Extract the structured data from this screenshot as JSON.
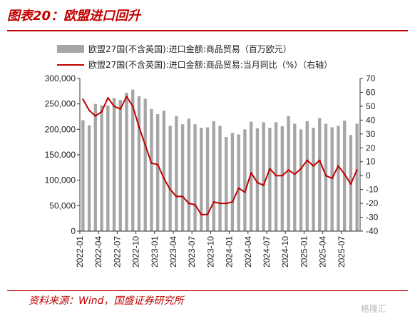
{
  "title": "图表20：欧盟进口回升",
  "source": "资料来源：Wind，国盛证券研究所",
  "watermark": "格隆汇",
  "colors": {
    "bar": "#a6a6a6",
    "line": "#c00000",
    "accent": "#c00000"
  },
  "chart_data": {
    "type": "bar+line",
    "categories": [
      "2022-01",
      "2022-02",
      "2022-03",
      "2022-04",
      "2022-05",
      "2022-06",
      "2022-07",
      "2022-08",
      "2022-09",
      "2022-10",
      "2022-11",
      "2022-12",
      "2023-01",
      "2023-02",
      "2023-03",
      "2023-04",
      "2023-05",
      "2023-06",
      "2023-07",
      "2023-08",
      "2023-09",
      "2023-10",
      "2023-11",
      "2023-12",
      "2024-01",
      "2024-02",
      "2024-03",
      "2024-04",
      "2024-05",
      "2024-06",
      "2024-07",
      "2024-08",
      "2024-09",
      "2024-10",
      "2024-11",
      "2024-12",
      "2025-01",
      "2025-02",
      "2025-03",
      "2025-04",
      "2025-05",
      "2025-06",
      "2025-07",
      "2025-08",
      "2025-09"
    ],
    "x_tick_labels": [
      "2022-01",
      "2022-04",
      "2022-07",
      "2022-10",
      "2023-01",
      "2023-04",
      "2023-07",
      "2023-10",
      "2024-01",
      "2024-04",
      "2024-07",
      "2024-10",
      "2025-01",
      "2025-04",
      "2025-07"
    ],
    "series": [
      {
        "name": "欧盟27国(不含英国):进口金额:商品贸易（百万欧元）",
        "type": "bar",
        "axis": "left",
        "values": [
          218000,
          208000,
          250000,
          247000,
          247000,
          262000,
          258000,
          272000,
          278000,
          265000,
          260000,
          240000,
          230000,
          237000,
          207000,
          226000,
          210000,
          221000,
          210000,
          203000,
          204000,
          216000,
          207000,
          185000,
          193000,
          190000,
          200000,
          215000,
          202000,
          214000,
          203000,
          214000,
          206000,
          226000,
          211000,
          200000,
          216000,
          203000,
          222000,
          211000,
          204000,
          207000,
          217000,
          189000,
          211000
        ]
      },
      {
        "name": "欧盟27国(不含英国):进口金额:商品贸易:当月同比（%）（右轴）",
        "type": "line",
        "axis": "right",
        "values": [
          55,
          47,
          43,
          46,
          56,
          50,
          48,
          57,
          50,
          35,
          22,
          9,
          8,
          -2,
          -10,
          -15,
          -15,
          -20,
          -21,
          -28,
          -28,
          -19,
          -20,
          -20,
          -19,
          -9,
          -12,
          2,
          -5,
          -7,
          5,
          0,
          0,
          4,
          1,
          5,
          11,
          7,
          11,
          0,
          -2,
          7,
          1,
          -6,
          4
        ]
      }
    ],
    "y_left": {
      "min": 0,
      "max": 300000,
      "ticks": [
        "0",
        "50,000",
        "100,000",
        "150,000",
        "200,000",
        "250,000",
        "300,000"
      ]
    },
    "y_right": {
      "min": -40,
      "max": 70,
      "ticks": [
        "-40",
        "-30",
        "-20",
        "-10",
        "0",
        "10",
        "20",
        "30",
        "40",
        "50",
        "60",
        "70"
      ]
    },
    "legend_position": "top"
  }
}
